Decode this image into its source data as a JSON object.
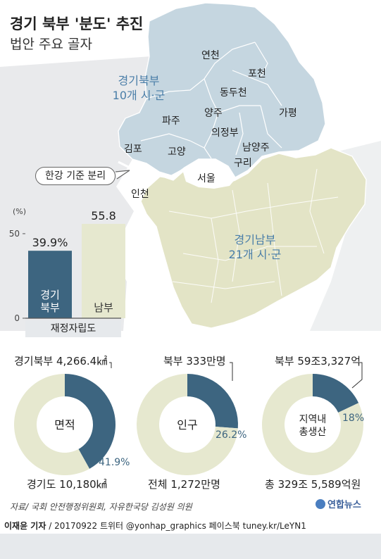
{
  "title": "경기 북부 '분도' 추진",
  "subtitle": "법안 주요 골자",
  "colors": {
    "north_fill": "#c5d6e0",
    "south_fill": "#e3e4c6",
    "outside_fill": "#e9eaec",
    "dark_blue": "#3d6580",
    "beige": "#e6e8cf",
    "region_label": "#4a7ea8",
    "bottom_bar": "#e6e9ec"
  },
  "map": {
    "north_label": [
      "경기북부",
      "10개 시·군"
    ],
    "south_label": [
      "경기남부",
      "21개 시·군"
    ],
    "cities": [
      "연천",
      "포천",
      "동두천",
      "가평",
      "파주",
      "양주",
      "의정부",
      "김포",
      "고양",
      "남양주",
      "구리",
      "서울",
      "인천"
    ],
    "callout": "한강 기준 분리"
  },
  "chart_data": [
    {
      "type": "bar",
      "title": "재정자립도",
      "ylabel": "(%)",
      "categories": [
        "경기 북부",
        "남부"
      ],
      "category_lines": [
        [
          "경기",
          "북부"
        ],
        [
          "남부"
        ]
      ],
      "values": [
        39.9,
        55.8
      ],
      "value_labels": [
        "39.9%",
        "55.8"
      ],
      "yticks": [
        0,
        50
      ],
      "ylim": [
        0,
        60
      ],
      "colors": [
        "#3d6580",
        "#e6e8cf"
      ]
    },
    {
      "type": "pie",
      "center_label": [
        "면적"
      ],
      "categories": [
        "경기북부",
        "나머지"
      ],
      "values": [
        41.9,
        58.1
      ],
      "top_label": "경기북부 4,266.4㎢",
      "percent_label": "41.9%",
      "bottom_label": "경기도 10,180㎢"
    },
    {
      "type": "pie",
      "center_label": [
        "인구"
      ],
      "categories": [
        "북부",
        "나머지"
      ],
      "values": [
        26.2,
        73.8
      ],
      "top_label": "북부 333만명",
      "percent_label": "26.2%",
      "bottom_label": "전체 1,272만명"
    },
    {
      "type": "pie",
      "center_label": [
        "지역내",
        "총생산"
      ],
      "categories": [
        "북부",
        "나머지"
      ],
      "values": [
        18,
        82
      ],
      "top_label": "북부 59조3,327억",
      "percent_label": "18%",
      "bottom_label": "총 329조 5,589억원"
    }
  ],
  "source": "자료/ 국회 안전행정위원회, 자유한국당 김성원 의원",
  "logo": "연합뉴스",
  "credit": {
    "author": "이재윤 기자",
    "rest": " / 20170922  트위터 @yonhap_graphics  페이스북 tuney.kr/LeYN1"
  }
}
